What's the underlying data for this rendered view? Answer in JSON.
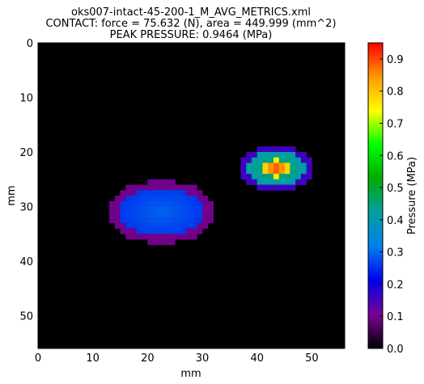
{
  "chart_data": {
    "type": "heatmap",
    "title_lines": [
      "oks007-intact-45-200-1_M_AVG_METRICS.xml",
      "CONTACT: force = 75.632 (N), area = 449.999 (mm^2)",
      "PEAK PRESSURE: 0.9464 (MPa)"
    ],
    "xlabel": "mm",
    "ylabel": "mm",
    "xlim": [
      0,
      56
    ],
    "ylim": [
      56,
      0
    ],
    "xticks": [
      "0",
      "10",
      "20",
      "30",
      "40",
      "50"
    ],
    "yticks": [
      "0",
      "10",
      "20",
      "30",
      "40",
      "50"
    ],
    "colorbar": {
      "label": "Pressure (MPa)",
      "range": [
        0.0,
        0.95
      ],
      "ticks": [
        "0.0",
        "0.1",
        "0.2",
        "0.3",
        "0.4",
        "0.5",
        "0.6",
        "0.7",
        "0.8",
        "0.9"
      ],
      "colormap": [
        "#000000",
        "#7a0096",
        "#0000ee",
        "#0080ee",
        "#00a0a0",
        "#00aa00",
        "#00ff00",
        "#ffff00",
        "#ff9900",
        "#ff0000"
      ]
    },
    "background": "#000000",
    "grid": false,
    "contact_regions": [
      {
        "center_mm": [
          22.5,
          31.0
        ],
        "radius_mm": [
          8.5,
          5.0
        ],
        "typical_MPa": 0.28
      },
      {
        "center_mm": [
          43.5,
          23.0
        ],
        "radius_mm": [
          6.0,
          3.5
        ],
        "typical_MPa": 0.45,
        "peak_MPa": 0.9464
      }
    ]
  }
}
